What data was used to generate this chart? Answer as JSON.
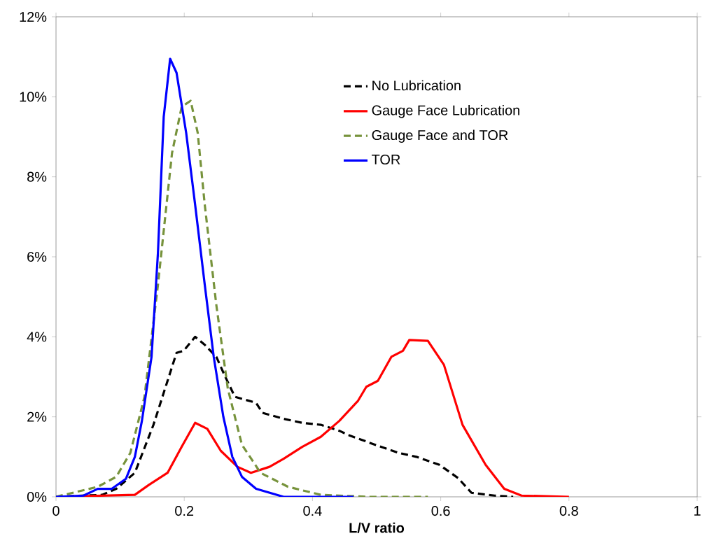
{
  "chart_data": {
    "type": "line",
    "xlabel": "L/V ratio",
    "xlim": [
      0,
      1
    ],
    "ylim": [
      0,
      12
    ],
    "xticks": [
      0,
      0.2,
      0.4,
      0.6,
      0.8,
      1
    ],
    "yticks": [
      {
        "value": 0,
        "label": "0%"
      },
      {
        "value": 2,
        "label": "2%"
      },
      {
        "value": 4,
        "label": "4%"
      },
      {
        "value": 6,
        "label": "6%"
      },
      {
        "value": 8,
        "label": "8%"
      },
      {
        "value": 10,
        "label": "10%"
      },
      {
        "value": 12,
        "label": "12%"
      }
    ],
    "grid": false,
    "legend": "top right",
    "marker": "none",
    "series": [
      {
        "name": "No Lubrication",
        "color": "#000000",
        "line_style": "dashed",
        "x": [
          0,
          0.072,
          0.094,
          0.123,
          0.152,
          0.174,
          0.188,
          0.199,
          0.217,
          0.232,
          0.25,
          0.264,
          0.279,
          0.312,
          0.322,
          0.355,
          0.384,
          0.413,
          0.442,
          0.455,
          0.498,
          0.534,
          0.562,
          0.598,
          0.627,
          0.648,
          0.684,
          0.713
        ],
        "values": [
          0,
          0.05,
          0.2,
          0.6,
          1.8,
          2.9,
          3.6,
          3.65,
          4.0,
          3.8,
          3.5,
          3.0,
          2.5,
          2.35,
          2.1,
          1.95,
          1.85,
          1.8,
          1.65,
          1.55,
          1.3,
          1.1,
          1.0,
          0.8,
          0.47,
          0.1,
          0.03,
          0
        ]
      },
      {
        "name": "Gauge Face Lubrication",
        "color": "#ff0000",
        "line_style": "solid",
        "x": [
          0,
          0.123,
          0.145,
          0.174,
          0.196,
          0.217,
          0.236,
          0.257,
          0.283,
          0.304,
          0.333,
          0.355,
          0.384,
          0.413,
          0.442,
          0.471,
          0.484,
          0.502,
          0.523,
          0.541,
          0.551,
          0.58,
          0.605,
          0.634,
          0.67,
          0.699,
          0.726,
          0.8
        ],
        "values": [
          0,
          0.05,
          0.3,
          0.6,
          1.25,
          1.85,
          1.7,
          1.15,
          0.75,
          0.6,
          0.75,
          0.95,
          1.25,
          1.5,
          1.9,
          2.4,
          2.75,
          2.9,
          3.5,
          3.65,
          3.92,
          3.9,
          3.3,
          1.8,
          0.8,
          0.2,
          0.03,
          0
        ]
      },
      {
        "name": "Gauge Face and TOR",
        "color": "#77933c",
        "line_style": "dashed",
        "x": [
          0,
          0.065,
          0.094,
          0.116,
          0.138,
          0.159,
          0.181,
          0.196,
          0.21,
          0.221,
          0.232,
          0.25,
          0.268,
          0.29,
          0.319,
          0.362,
          0.413,
          0.486,
          0.58
        ],
        "values": [
          0,
          0.25,
          0.5,
          1.1,
          2.5,
          5.3,
          8.6,
          9.75,
          9.9,
          9.1,
          7.3,
          4.8,
          2.7,
          1.3,
          0.6,
          0.25,
          0.05,
          0,
          0
        ]
      },
      {
        "name": "TOR",
        "color": "#0000ff",
        "line_style": "solid",
        "x": [
          0,
          0.043,
          0.065,
          0.087,
          0.109,
          0.123,
          0.134,
          0.149,
          0.159,
          0.168,
          0.178,
          0.188,
          0.203,
          0.217,
          0.232,
          0.246,
          0.261,
          0.275,
          0.29,
          0.312,
          0.355,
          0.464
        ],
        "values": [
          0,
          0.03,
          0.2,
          0.2,
          0.45,
          1.0,
          1.9,
          3.5,
          6.1,
          9.5,
          10.95,
          10.6,
          9.1,
          7.3,
          5.3,
          3.5,
          2.0,
          1.0,
          0.5,
          0.2,
          0,
          0
        ]
      }
    ]
  }
}
